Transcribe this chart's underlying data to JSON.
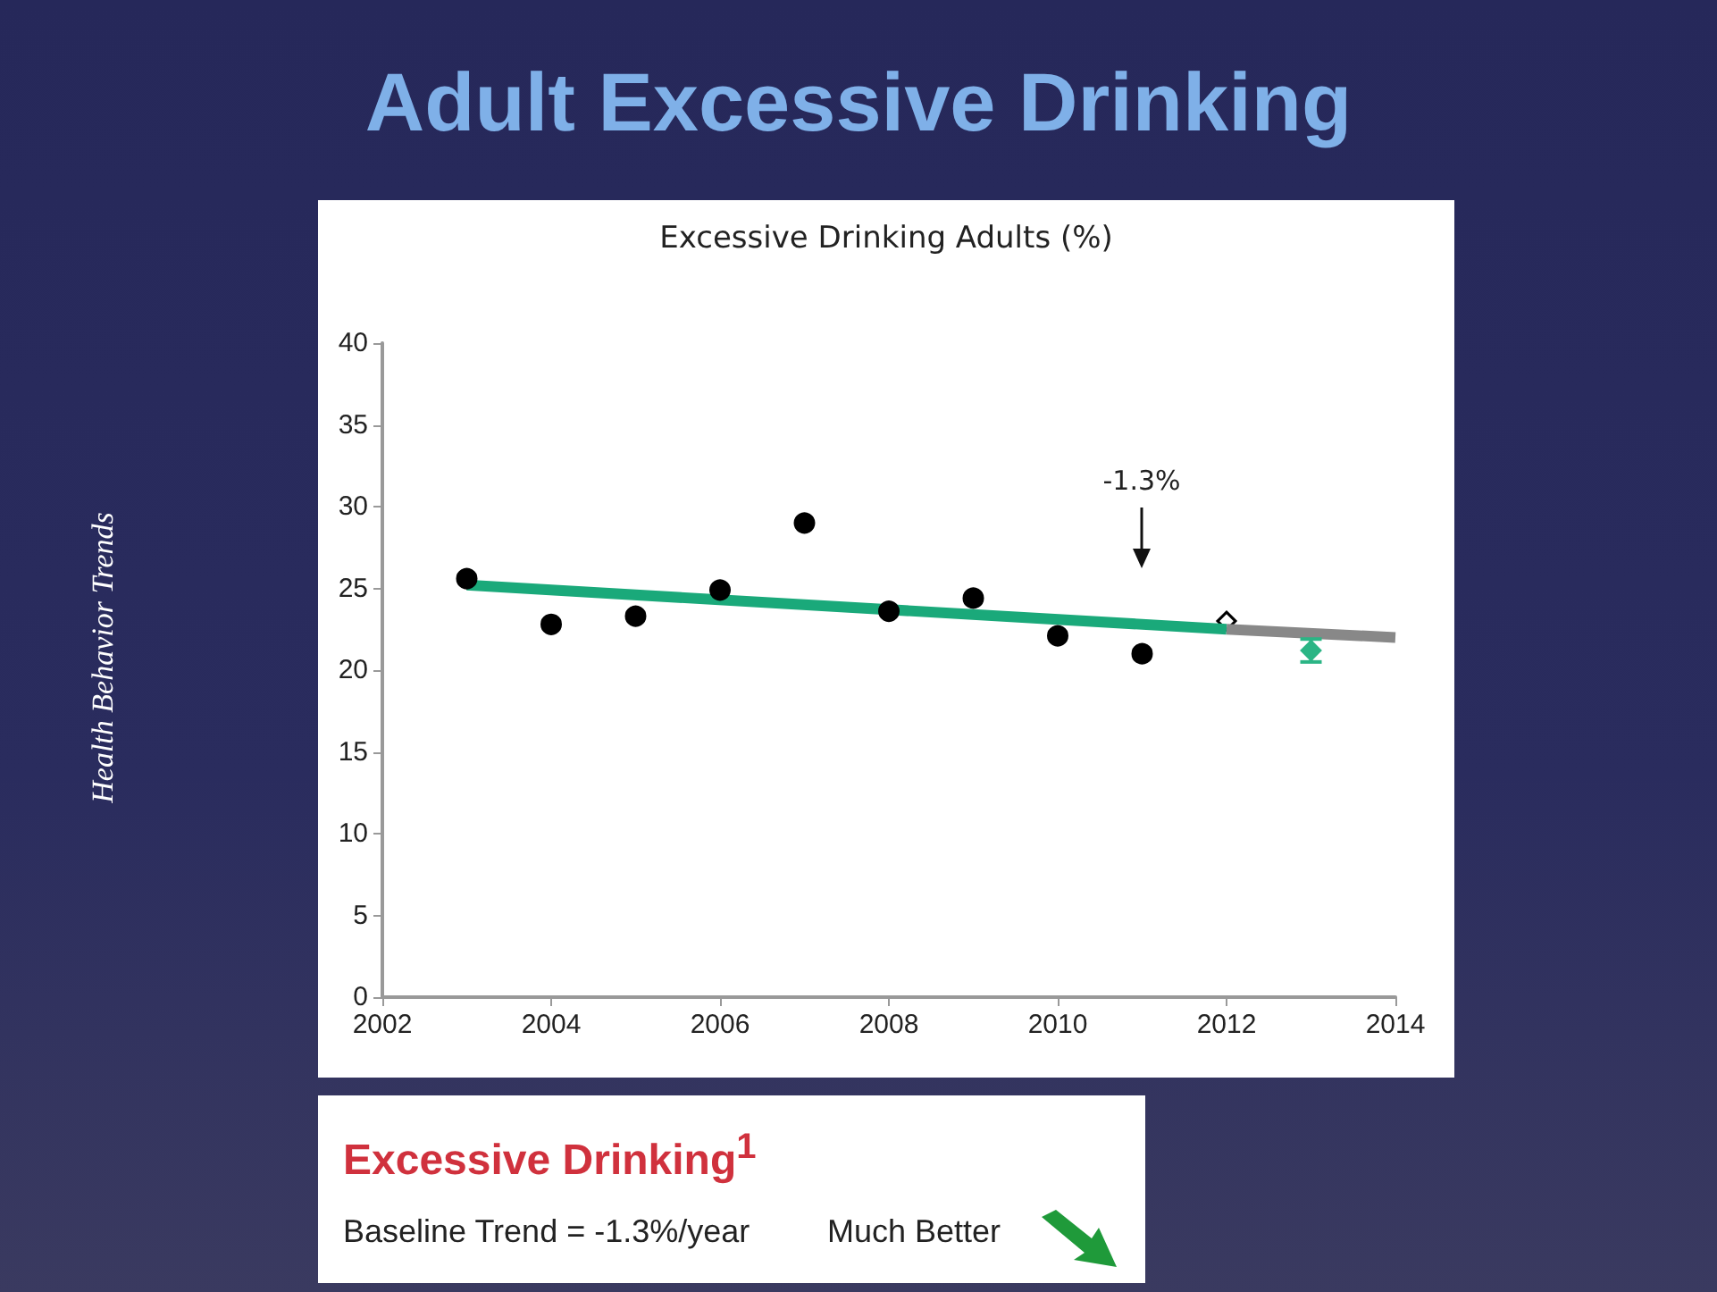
{
  "chart_data": {
    "type": "scatter",
    "title": "Adult Excessive Drinking",
    "subtitle": "Excessive Drinking Adults (%)",
    "xlim": [
      2002,
      2014
    ],
    "xticks": [
      2002,
      2004,
      2006,
      2008,
      2010,
      2012,
      2014
    ],
    "ylim": [
      0,
      40
    ],
    "yticks": [
      0,
      5,
      10,
      15,
      20,
      25,
      30,
      35,
      40
    ],
    "grid": false,
    "series": [
      {
        "color": "#000000",
        "marker": "circle",
        "x": [
          2003,
          2004,
          2005,
          2006,
          2007,
          2008,
          2009,
          2010,
          2011
        ],
        "values": [
          25.6,
          22.8,
          23.3,
          24.9,
          29.0,
          23.6,
          24.4,
          22.1,
          21.0
        ]
      },
      {
        "type": "line",
        "color": "#1aa97a",
        "marker": "none",
        "line_style": "solid",
        "x": [
          2003,
          2012
        ],
        "values": [
          25.2,
          22.5
        ]
      },
      {
        "type": "line",
        "color": "#888888",
        "marker": "none",
        "line_style": "solid",
        "x": [
          2012,
          2014
        ],
        "values": [
          22.5,
          22.0
        ]
      },
      {
        "color": "#000000",
        "marker": "diamond",
        "x": [
          2012
        ],
        "values": [
          23.0
        ]
      },
      {
        "color": "#2bb585",
        "marker": "diamond",
        "x": [
          2013
        ],
        "values": [
          21.2
        ],
        "errors": [
          [
            20.5,
            21.9
          ]
        ]
      }
    ],
    "annotations": [
      "Health Behavior Trends",
      "Excessive Drinking$^{1}$",
      "Baseline Trend = -1.3%/year",
      "Much Better",
      "-1.3%"
    ]
  }
}
